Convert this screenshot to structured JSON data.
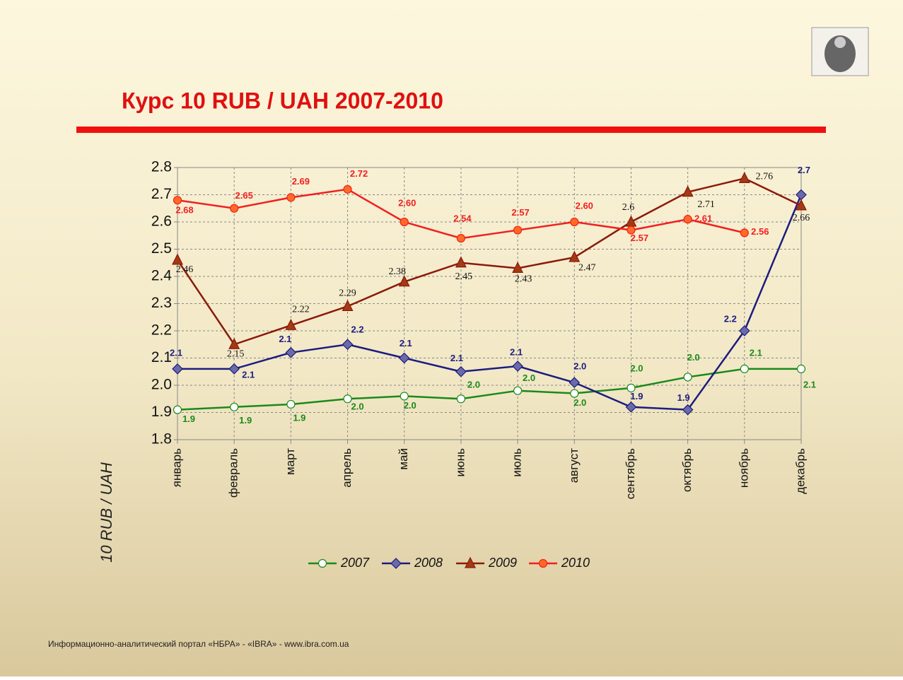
{
  "chart_data": {
    "type": "line",
    "title": "Курс 10 RUB / UAH  2007-2010",
    "y_label": "10 RUB / UAH",
    "footer": "Информационно-аналитический портал «НБРА» - «IBRA» - www.ibra.com.ua",
    "categories": [
      "январь",
      "февраль",
      "март",
      "апрель",
      "май",
      "июнь",
      "июль",
      "август",
      "сентябрь",
      "октябрь",
      "ноябрь",
      "декабрь"
    ],
    "ylim": [
      1.8,
      2.8
    ],
    "yticks": [
      {
        "value": 1.8,
        "label": "1.8"
      },
      {
        "value": 1.9,
        "label": "1.9"
      },
      {
        "value": 2.0,
        "label": "2.0"
      },
      {
        "value": 2.1,
        "label": "2.1"
      },
      {
        "value": 2.2,
        "label": "2.2"
      },
      {
        "value": 2.3,
        "label": "2.3"
      },
      {
        "value": 2.4,
        "label": "2.4"
      },
      {
        "value": 2.5,
        "label": "2.5"
      },
      {
        "value": 2.6,
        "label": "2.6"
      },
      {
        "value": 2.7,
        "label": "2.7"
      },
      {
        "value": 2.8,
        "label": "2.8"
      }
    ],
    "grid": true,
    "legend": "bottom",
    "series": [
      {
        "name": "2007",
        "color": "#1a8a1a",
        "marker": "circle",
        "marker_fill": "#ffffff",
        "values": [
          1.91,
          1.92,
          1.93,
          1.95,
          1.96,
          1.95,
          1.98,
          1.97,
          1.99,
          2.03,
          2.06,
          2.06
        ],
        "value_labels": [
          "1.9",
          "1.9",
          "1.9",
          "2.0",
          "2.0",
          "2.0",
          "2.0",
          "2.0",
          "2.0",
          "2.0",
          "2.1",
          "2.1"
        ]
      },
      {
        "name": "2008",
        "color": "#1c1c80",
        "marker": "diamond",
        "marker_fill": "#6a6aa8",
        "values": [
          2.06,
          2.06,
          2.12,
          2.15,
          2.1,
          2.05,
          2.07,
          2.01,
          1.92,
          1.91,
          2.2,
          2.7
        ],
        "value_labels": [
          "2.1",
          "2.1",
          "2.1",
          "2.2",
          "2.1",
          "2.1",
          "2.1",
          "2.0",
          "1.9",
          "1.9",
          "2.2",
          "2.7"
        ]
      },
      {
        "name": "2009",
        "color": "#8b1a0a",
        "marker": "triangle",
        "marker_fill": "#a33a14",
        "values": [
          2.46,
          2.15,
          2.22,
          2.29,
          2.38,
          2.45,
          2.43,
          2.47,
          2.6,
          2.71,
          2.76,
          2.66
        ]
      },
      {
        "name": "2010",
        "color": "#f02020",
        "marker": "circle",
        "marker_fill": "#ff6a24",
        "values": [
          2.68,
          2.65,
          2.69,
          2.72,
          2.6,
          2.54,
          2.57,
          2.6,
          2.57,
          2.61,
          2.56,
          null
        ],
        "value_labels": [
          "2.68",
          "2.65",
          "2.69",
          "2.72",
          "2.60",
          "2.54",
          "2.57",
          "2.60",
          "2.57",
          "2.61",
          "2.56",
          null
        ]
      }
    ]
  }
}
